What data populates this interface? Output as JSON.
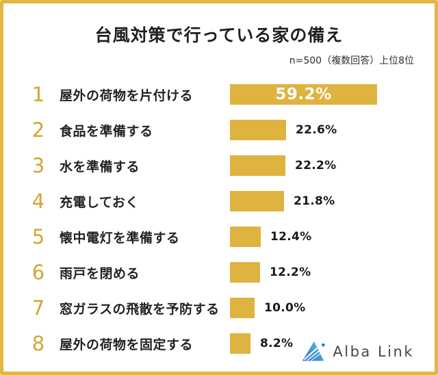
{
  "header": {
    "title": "台風対策で行っている家の備え",
    "note": "n=500（複数回答）上位8位"
  },
  "chart_data": {
    "type": "bar",
    "orientation": "horizontal",
    "title": "台風対策で行っている家の備え",
    "note": "n=500（複数回答）上位8位",
    "unit": "%",
    "ranks": [
      1,
      2,
      3,
      4,
      5,
      6,
      7,
      8
    ],
    "categories": [
      "屋外の荷物を片付ける",
      "食品を準備する",
      "水を準備する",
      "充電しておく",
      "懐中電灯を準備する",
      "雨戸を閉める",
      "窓ガラスの飛散を予防する",
      "屋外の荷物を固定する"
    ],
    "values": [
      59.2,
      22.6,
      22.2,
      21.8,
      12.4,
      12.2,
      10.0,
      8.2
    ],
    "value_labels": [
      "59.2%",
      "22.6%",
      "22.2%",
      "21.8%",
      "12.4%",
      "12.2%",
      "10.0%",
      "8.2%"
    ],
    "xlim": [
      0,
      62
    ],
    "grid": false,
    "legend": false,
    "bar_color": "#DFB340"
  },
  "footer": {
    "logo_text": "Alba Link"
  },
  "colors": {
    "accent_gold": "#DFB340",
    "rank_gold": "#D3A62E",
    "logo_blue_dark": "#2B7BBF",
    "logo_blue_light": "#6FC0EA"
  }
}
